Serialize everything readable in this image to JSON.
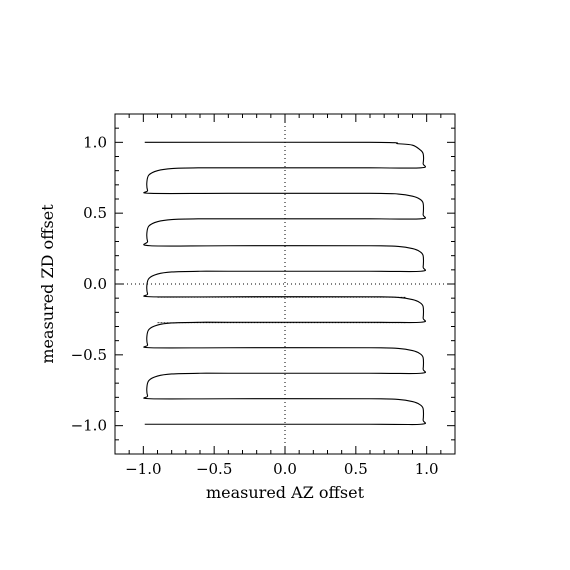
{
  "chart_data": {
    "type": "line",
    "title": "",
    "xlabel": "measured AZ offset",
    "ylabel": "measured ZD offset",
    "xlim": [
      -1.2,
      1.2
    ],
    "ylim": [
      -1.2,
      1.2
    ],
    "xticks": [
      -1.0,
      -0.5,
      0.0,
      0.5,
      1.0
    ],
    "yticks": [
      -1.0,
      -0.5,
      0.0,
      0.5,
      1.0
    ],
    "xtick_labels": [
      "−1.0",
      "−0.5",
      "0.0",
      "0.5",
      "1.0"
    ],
    "ytick_labels": [
      "−1.0",
      "−0.5",
      "0.0",
      "0.5",
      "1.0"
    ],
    "grid": false,
    "reference_lines": {
      "x": 0.0,
      "y": 0.0,
      "style": "dotted"
    },
    "series": [
      {
        "style": "solid",
        "color": "#000000",
        "raster_scan_ZD_levels": [
          1.0,
          0.82,
          0.64,
          0.46,
          0.27,
          0.09,
          -0.09,
          -0.27,
          -0.45,
          -0.63,
          -0.81,
          -0.99
        ],
        "x": [
          -0.99,
          0.6,
          0.8,
          0.9,
          0.95,
          0.975,
          0.975,
          0.96,
          0.6,
          -0.4,
          -0.6,
          -0.8,
          -0.9,
          -0.96,
          -0.975,
          -0.97,
          -0.95,
          -0.4,
          0.6,
          0.8,
          0.9,
          0.95,
          0.975,
          0.975,
          0.96,
          0.6,
          -0.4,
          -0.6,
          -0.8,
          -0.9,
          -0.96,
          -0.975,
          -0.97,
          -0.95,
          -0.4,
          0.6,
          0.8,
          0.9,
          0.95,
          0.975,
          0.975,
          0.96,
          0.6,
          -0.4,
          -0.6,
          -0.8,
          -0.9,
          -0.96,
          -0.975,
          -0.97,
          -0.95,
          -0.4,
          0.6,
          0.8,
          0.9,
          0.95,
          0.975,
          0.975,
          0.96,
          0.6,
          -0.4,
          -0.6,
          -0.8,
          -0.9,
          -0.96,
          -0.975,
          -0.97,
          -0.95,
          -0.4,
          0.6,
          0.8,
          0.9,
          0.95,
          0.975,
          0.975,
          0.96,
          0.6,
          -0.4,
          -0.6,
          -0.8,
          -0.9,
          -0.96,
          -0.975,
          -0.97,
          -0.95,
          -0.4,
          0.6,
          0.8,
          0.9,
          0.95,
          0.975,
          0.975,
          0.96,
          0.6,
          -0.99
        ],
        "y": [
          1.0,
          1.0,
          0.99,
          0.98,
          0.95,
          0.92,
          0.85,
          0.82,
          0.82,
          0.82,
          0.82,
          0.815,
          0.8,
          0.77,
          0.72,
          0.66,
          0.64,
          0.64,
          0.64,
          0.635,
          0.62,
          0.6,
          0.57,
          0.49,
          0.46,
          0.46,
          0.46,
          0.46,
          0.455,
          0.44,
          0.41,
          0.36,
          0.3,
          0.27,
          0.27,
          0.27,
          0.265,
          0.25,
          0.23,
          0.2,
          0.12,
          0.09,
          0.09,
          0.09,
          0.09,
          0.085,
          0.07,
          0.04,
          -0.01,
          -0.07,
          -0.09,
          -0.09,
          -0.09,
          -0.095,
          -0.11,
          -0.13,
          -0.16,
          -0.24,
          -0.27,
          -0.27,
          -0.27,
          -0.27,
          -0.275,
          -0.29,
          -0.32,
          -0.37,
          -0.43,
          -0.45,
          -0.45,
          -0.45,
          -0.455,
          -0.47,
          -0.49,
          -0.52,
          -0.6,
          -0.63,
          -0.63,
          -0.63,
          -0.63,
          -0.635,
          -0.65,
          -0.68,
          -0.73,
          -0.79,
          -0.81,
          -0.81,
          -0.81,
          -0.815,
          -0.83,
          -0.85,
          -0.88,
          -0.96,
          -0.99,
          -0.99,
          -0.99
        ]
      }
    ]
  }
}
